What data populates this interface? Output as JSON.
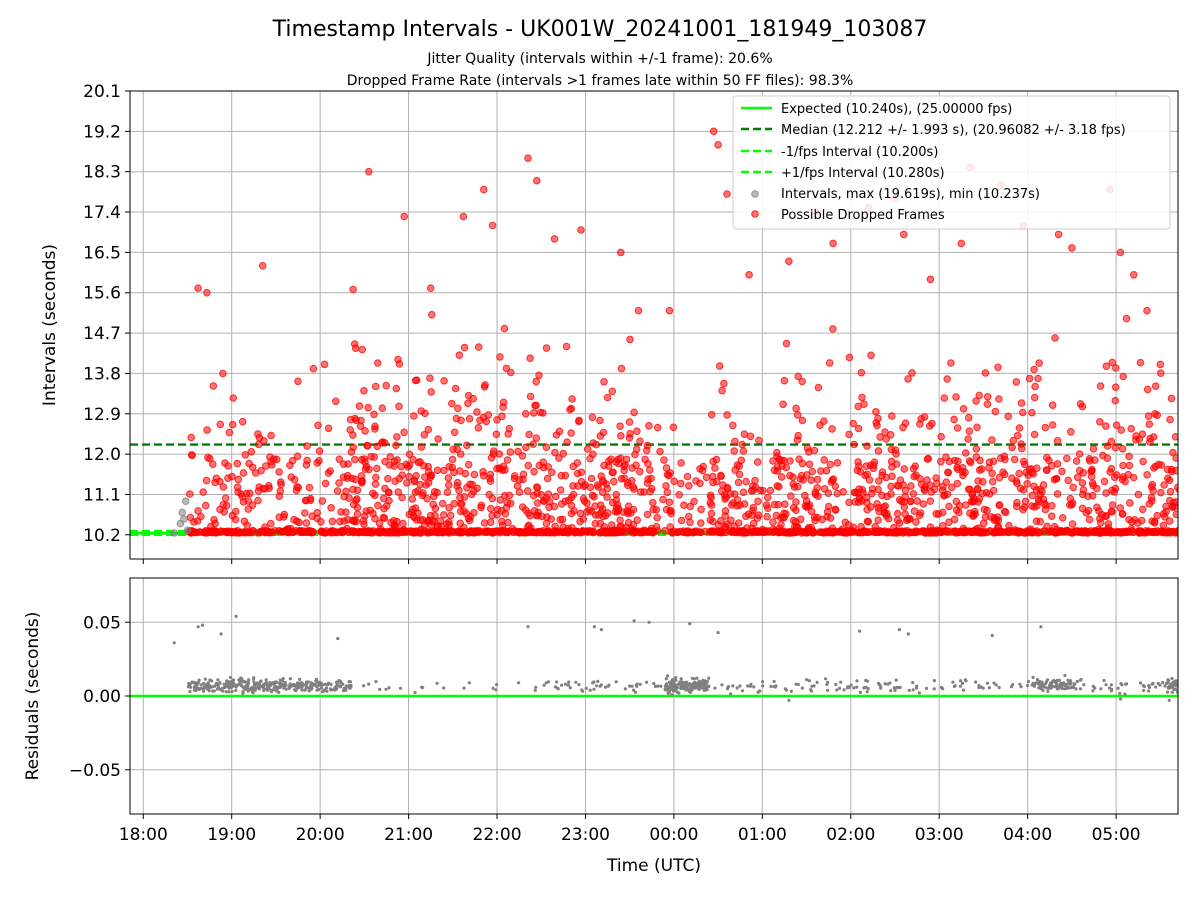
{
  "figure": {
    "title": "Timestamp Intervals - UK001W_20241001_181949_103087",
    "subtitle_1": "Jitter Quality (intervals within +/-1 frame): 20.6%",
    "subtitle_2": "Dropped Frame Rate (intervals >1 frames late within 50 FF files): 98.3%"
  },
  "colors": {
    "expected": "#00ff00",
    "median": "#007f00",
    "intervals": "#808080",
    "dropped": "#ff0000",
    "residuals": "#808080",
    "grid": "#b0b0b0"
  },
  "chart_data": [
    {
      "type": "scatter",
      "ylabel": "Intervals (seconds)",
      "xlim_hours": [
        17.85,
        29.7
      ],
      "ylim": [
        9.66,
        20.1
      ],
      "y_ticks": [
        10.2,
        11.1,
        12.0,
        12.9,
        13.8,
        14.7,
        15.6,
        16.5,
        17.4,
        18.3,
        19.2,
        20.1
      ],
      "y_tick_labels": [
        "10.2",
        "11.1",
        "12.0",
        "12.9",
        "13.8",
        "14.7",
        "15.6",
        "16.5",
        "17.4",
        "18.3",
        "19.2",
        "20.1"
      ],
      "grid": true,
      "legend_position": "top-right",
      "reference_lines": [
        {
          "name": "Expected (10.240s), (25.00000 fps)",
          "y": 10.24,
          "style": "solid",
          "color": "#00ff00"
        },
        {
          "name": "Median (12.212 +/- 1.993 s), (20.96082 +/- 3.18 fps)",
          "y": 12.212,
          "style": "dashed",
          "color": "#007f00"
        },
        {
          "name": "-1/fps Interval (10.200s)",
          "y": 10.2,
          "style": "dashed",
          "color": "#00ff00"
        },
        {
          "name": "+1/fps Interval (10.280s)",
          "y": 10.28,
          "style": "dashed",
          "color": "#00ff00"
        }
      ],
      "series": [
        {
          "name": "Intervals, max (19.619s), min (10.237s)",
          "marker": "circle",
          "color": "#808080",
          "points": [
            [
              18.35,
              10.24
            ],
            [
              18.42,
              10.45
            ],
            [
              18.44,
              10.7
            ],
            [
              18.48,
              10.95
            ],
            [
              18.5,
              10.3
            ],
            [
              18.46,
              10.55
            ]
          ]
        },
        {
          "name": "Possible Dropped Frames",
          "marker": "circle",
          "color": "#ff0000",
          "points": [
            [
              18.62,
              15.7
            ],
            [
              18.72,
              15.6
            ],
            [
              18.9,
              13.8
            ],
            [
              19.35,
              16.2
            ],
            [
              20.05,
              14.0
            ],
            [
              20.55,
              18.3
            ],
            [
              20.95,
              17.3
            ],
            [
              21.25,
              15.7
            ],
            [
              21.62,
              17.3
            ],
            [
              21.85,
              17.9
            ],
            [
              21.95,
              17.1
            ],
            [
              22.35,
              18.6
            ],
            [
              22.45,
              18.1
            ],
            [
              22.65,
              16.8
            ],
            [
              22.95,
              17.0
            ],
            [
              23.4,
              16.5
            ],
            [
              23.6,
              15.2
            ],
            [
              23.95,
              15.2
            ],
            [
              24.45,
              19.2
            ],
            [
              24.5,
              18.9
            ],
            [
              24.6,
              17.8
            ],
            [
              24.85,
              16.0
            ],
            [
              25.3,
              16.3
            ],
            [
              25.6,
              17.4
            ],
            [
              25.8,
              16.7
            ],
            [
              26.2,
              17.5
            ],
            [
              26.5,
              17.7
            ],
            [
              26.6,
              16.9
            ],
            [
              26.9,
              15.9
            ],
            [
              27.25,
              16.7
            ],
            [
              27.35,
              18.4
            ],
            [
              27.7,
              18.0
            ],
            [
              27.95,
              17.1
            ],
            [
              28.35,
              16.9
            ],
            [
              28.5,
              16.6
            ],
            [
              28.93,
              17.9
            ],
            [
              29.05,
              16.5
            ],
            [
              29.2,
              16.0
            ],
            [
              29.35,
              15.2
            ],
            [
              29.5,
              14.0
            ]
          ]
        }
      ]
    },
    {
      "type": "scatter",
      "ylabel": "Residuals (seconds)",
      "xlabel": "Time (UTC)",
      "ylim": [
        -0.08,
        0.08
      ],
      "y_ticks": [
        -0.05,
        0.0,
        0.05
      ],
      "y_tick_labels": [
        "−0.05",
        "0.00",
        "0.05"
      ],
      "x_ticks_hours": [
        18,
        19,
        20,
        21,
        22,
        23,
        24,
        25,
        26,
        27,
        28,
        29
      ],
      "x_tick_labels": [
        "18:00",
        "19:00",
        "20:00",
        "21:00",
        "22:00",
        "23:00",
        "00:00",
        "01:00",
        "02:00",
        "03:00",
        "04:00",
        "05:00"
      ],
      "grid": true,
      "reference_lines": [
        {
          "y": 0.0,
          "style": "solid",
          "color": "#00ff00"
        }
      ],
      "series": [
        {
          "marker": "dot",
          "color": "#808080",
          "points": [
            [
              18.35,
              0.036
            ],
            [
              18.62,
              0.047
            ],
            [
              18.67,
              0.048
            ],
            [
              18.88,
              0.042
            ],
            [
              19.05,
              0.054
            ],
            [
              20.2,
              0.039
            ],
            [
              22.35,
              0.047
            ],
            [
              23.1,
              0.047
            ],
            [
              23.18,
              0.045
            ],
            [
              23.55,
              0.051
            ],
            [
              23.72,
              0.05
            ],
            [
              24.18,
              0.049
            ],
            [
              24.5,
              0.043
            ],
            [
              25.3,
              -0.003
            ],
            [
              26.1,
              0.044
            ],
            [
              26.55,
              0.045
            ],
            [
              26.65,
              0.042
            ],
            [
              27.6,
              0.041
            ],
            [
              28.15,
              0.047
            ],
            [
              29.05,
              -0.002
            ],
            [
              29.6,
              -0.003
            ]
          ]
        }
      ]
    }
  ]
}
